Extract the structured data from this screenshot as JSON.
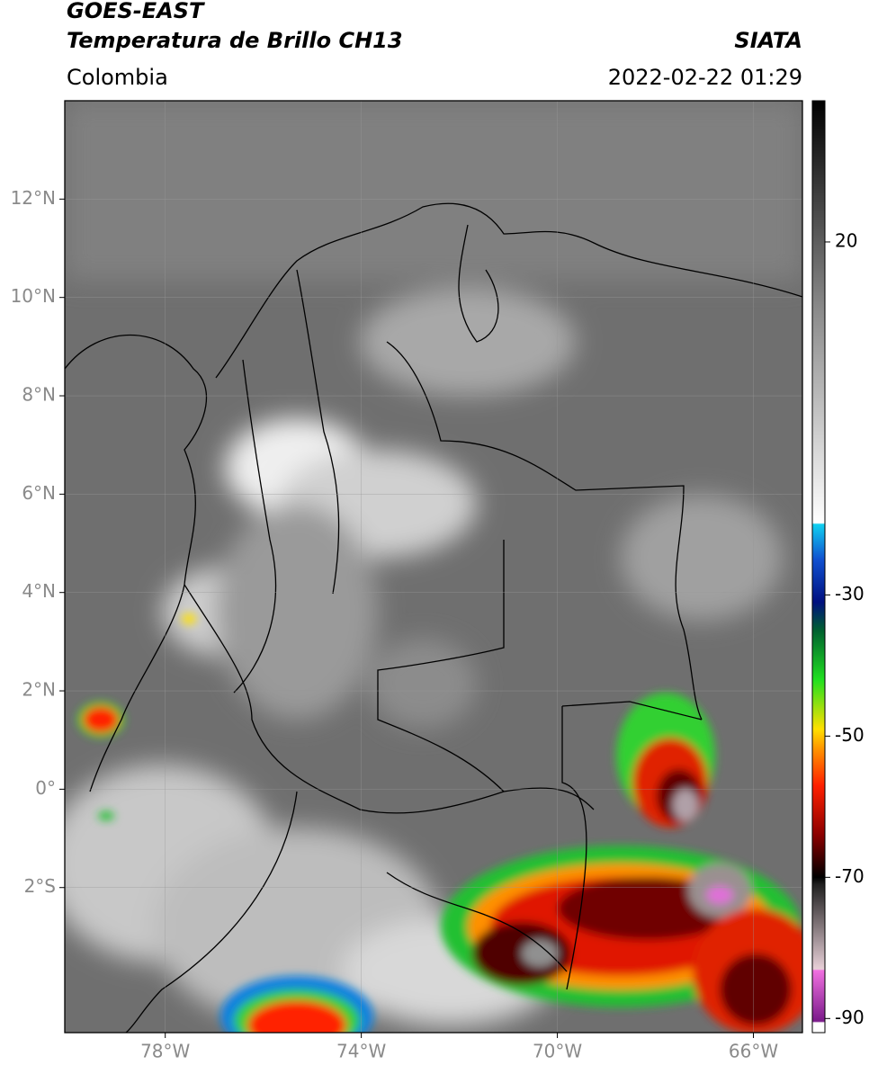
{
  "header": {
    "title": "GOES-EAST",
    "subtitle": "Temperatura de Brillo CH13",
    "source": "SIATA",
    "region": "Colombia",
    "datetime": "2022-02-22 01:29"
  },
  "map": {
    "xlim": [
      -80.05,
      -65
    ],
    "ylim": [
      -4.95,
      14
    ],
    "xticks": [
      {
        "value": -78,
        "label": "78°W"
      },
      {
        "value": -74,
        "label": "74°W"
      },
      {
        "value": -70,
        "label": "70°W"
      },
      {
        "value": -66,
        "label": "66°W"
      }
    ],
    "yticks": [
      {
        "value": 12,
        "label": "12°N"
      },
      {
        "value": 10,
        "label": "10°N"
      },
      {
        "value": 8,
        "label": "8°N"
      },
      {
        "value": 6,
        "label": "6°N"
      },
      {
        "value": 4,
        "label": "4°N"
      },
      {
        "value": 2,
        "label": "2°N"
      },
      {
        "value": 0,
        "label": "0°"
      },
      {
        "value": -2,
        "label": "2°S"
      }
    ],
    "grid": true
  },
  "colorbar": {
    "lim": [
      -92,
      40
    ],
    "ticks": [
      20,
      -30,
      -50,
      -70,
      -90
    ],
    "stops": [
      {
        "value": -92,
        "color": "#ffffff"
      },
      {
        "value": -90.6,
        "color": "#ffffff"
      },
      {
        "value": -90.4,
        "color": "#7a1a8a"
      },
      {
        "value": -83.2,
        "color": "#f070e0"
      },
      {
        "value": -83,
        "color": "#e8d0d8"
      },
      {
        "value": -71,
        "color": "#202020"
      },
      {
        "value": -70,
        "color": "#000000"
      },
      {
        "value": -64,
        "color": "#8b0000"
      },
      {
        "value": -57,
        "color": "#ff2000"
      },
      {
        "value": -52,
        "color": "#ff9000"
      },
      {
        "value": -49,
        "color": "#ffe000"
      },
      {
        "value": -42,
        "color": "#20e020"
      },
      {
        "value": -35,
        "color": "#006030"
      },
      {
        "value": -31,
        "color": "#001080"
      },
      {
        "value": -25,
        "color": "#1050d0"
      },
      {
        "value": -20,
        "color": "#10d0f0"
      },
      {
        "value": -19.8,
        "color": "#ffffff"
      },
      {
        "value": 10,
        "color": "#8c8c8c"
      },
      {
        "value": 40,
        "color": "#000000"
      }
    ]
  }
}
